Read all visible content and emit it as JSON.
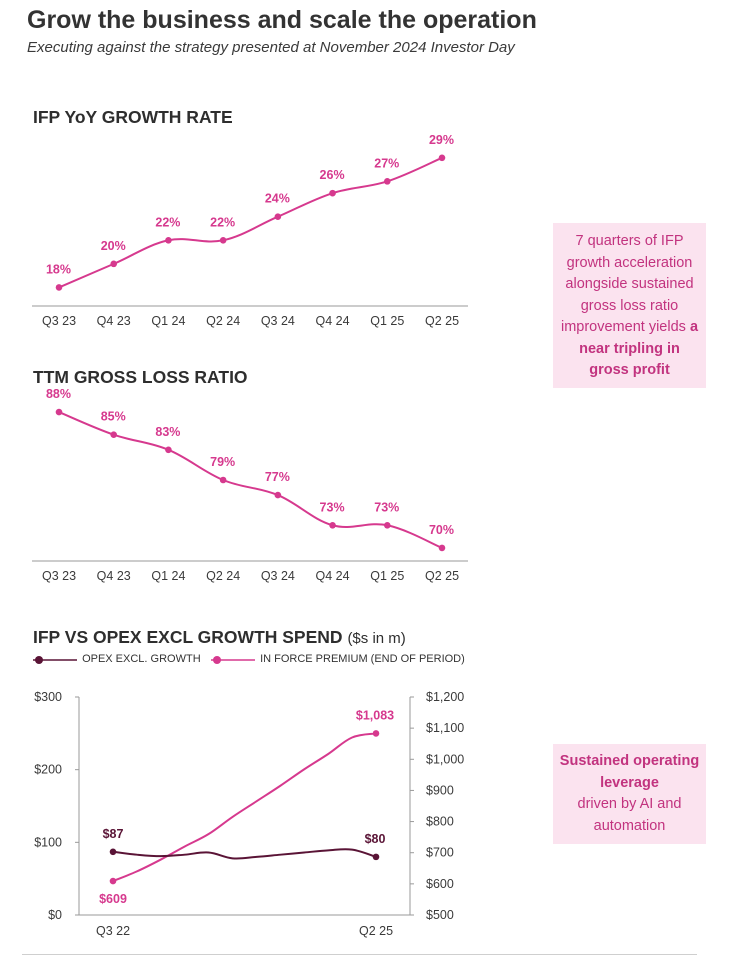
{
  "header": {
    "title": "Grow the business and scale the operation",
    "subtitle": "Executing against the strategy presented at November 2024 Investor Day"
  },
  "colors": {
    "pink": "#d6398e",
    "plum": "#5a1436",
    "callout_bg": "#fbe3ef"
  },
  "callouts": [
    {
      "text": "7 quarters of IFP growth acceleration alongside sustained gross loss ratio improvement yields",
      "bold": "a near tripling in gross profit"
    },
    {
      "text": "",
      "bold": "Sustained operating leverage",
      "rest": "driven by AI and automation"
    }
  ],
  "chart_data": [
    {
      "type": "line",
      "title": "IFP YoY GROWTH RATE",
      "categories": [
        "Q3 23",
        "Q4 23",
        "Q1 24",
        "Q2 24",
        "Q3 24",
        "Q4 24",
        "Q1 25",
        "Q2 25"
      ],
      "values": [
        18,
        20,
        22,
        22,
        24,
        26,
        27,
        29
      ],
      "labels": [
        "18%",
        "20%",
        "22%",
        "22%",
        "24%",
        "26%",
        "27%",
        "29%"
      ],
      "ylim": [
        16,
        30
      ],
      "grid": false
    },
    {
      "type": "line",
      "title": "TTM GROSS LOSS RATIO",
      "categories": [
        "Q3 23",
        "Q4 23",
        "Q1 24",
        "Q2 24",
        "Q3 24",
        "Q4 24",
        "Q1 25",
        "Q2 25"
      ],
      "values": [
        88,
        85,
        83,
        79,
        77,
        73,
        73,
        70
      ],
      "labels": [
        "88%",
        "85%",
        "83%",
        "79%",
        "77%",
        "73%",
        "73%",
        "70%"
      ],
      "ylim": [
        68,
        90
      ],
      "grid": false
    },
    {
      "type": "line",
      "title": "IFP VS OPEX EXCL GROWTH SPEND",
      "title_unit": "($s in m)",
      "x_tick_labels": [
        "Q3 22",
        "Q2 25"
      ],
      "x_count": 12,
      "series": [
        {
          "name": "OPEX EXCL. GROWTH",
          "axis": "left",
          "values": [
            87,
            83,
            81,
            83,
            86,
            78,
            80,
            83,
            86,
            89,
            90,
            80
          ],
          "end_labels": [
            "$87",
            "$80"
          ]
        },
        {
          "name": "IN FORCE PREMIUM (END OF PERIOD)",
          "axis": "right",
          "values": [
            609,
            640,
            678,
            720,
            760,
            815,
            865,
            915,
            968,
            1017,
            1070,
            1083
          ],
          "end_labels": [
            "$609",
            "$1,083"
          ]
        }
      ],
      "y_left": {
        "ticks": [
          "$0",
          "$100",
          "$200",
          "$300"
        ],
        "lim": [
          0,
          300
        ]
      },
      "y_right": {
        "ticks": [
          "$500",
          "$600",
          "$700",
          "$800",
          "$900",
          "$1,000",
          "$1,100",
          "$1,200"
        ],
        "lim": [
          500,
          1200
        ]
      },
      "legend": "top-left",
      "grid": false
    }
  ]
}
